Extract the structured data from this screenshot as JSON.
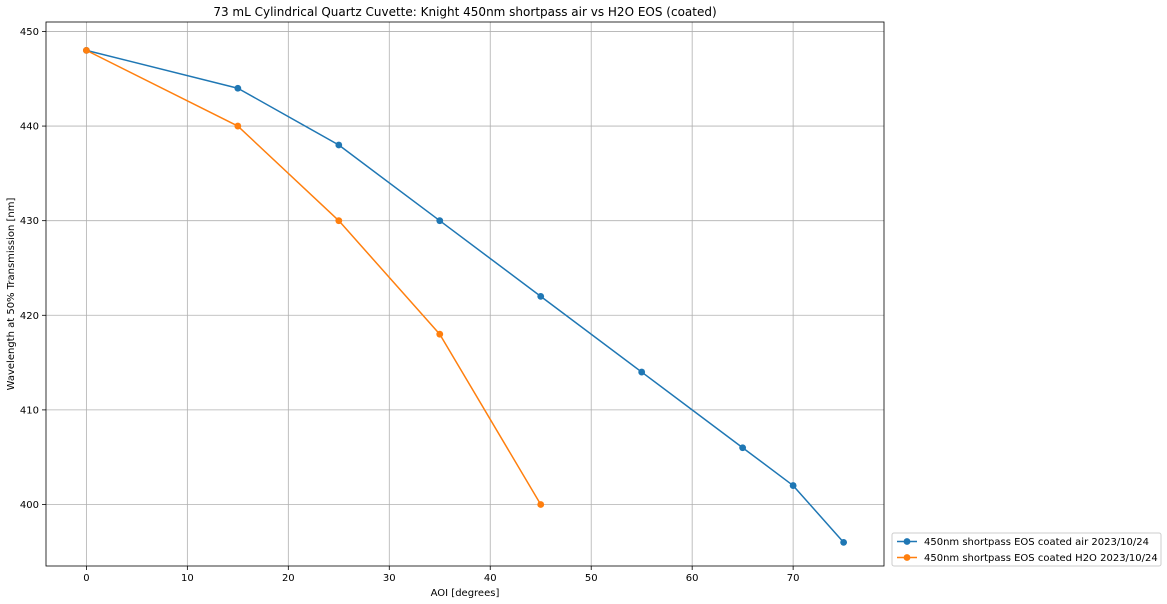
{
  "chart_data": {
    "type": "line",
    "title": "73 mL Cylindrical Quartz Cuvette: Knight 450nm shortpass air vs H2O EOS (coated)",
    "xlabel": "AOI [degrees]",
    "ylabel": "Wavelength at 50% Transmission [nm]",
    "xlim": [
      -4,
      79
    ],
    "ylim": [
      393.5,
      451
    ],
    "xticks": [
      0,
      10,
      20,
      30,
      40,
      50,
      60,
      70
    ],
    "yticks": [
      400,
      410,
      420,
      430,
      440,
      450
    ],
    "grid": true,
    "legend_position": "outside-bottom-right",
    "series": [
      {
        "name": "450nm shortpass EOS coated air 2023/10/24",
        "color": "#1f77b4",
        "marker": "circle",
        "x": [
          0,
          15,
          25,
          35,
          45,
          55,
          65,
          70,
          75
        ],
        "y": [
          448,
          444,
          438,
          430,
          422,
          414,
          406,
          402,
          396
        ]
      },
      {
        "name": "450nm shortpass EOS coated H2O 2023/10/24",
        "color": "#ff7f0e",
        "marker": "circle",
        "x": [
          0,
          15,
          25,
          35,
          45
        ],
        "y": [
          448,
          440,
          430,
          418,
          400
        ]
      }
    ]
  }
}
